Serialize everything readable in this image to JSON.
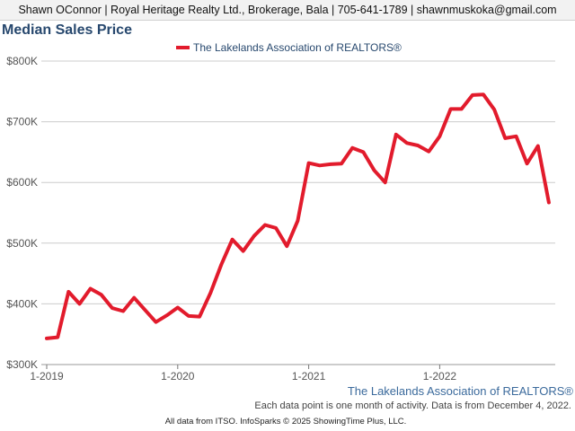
{
  "header": {
    "text": "Shawn OConnor | Royal Heritage Realty Ltd., Brokerage, Bala | 705-641-1789 | shawnmuskoka@gmail.com"
  },
  "footer": {
    "source": "The Lakelands Association of REALTORS®",
    "note": "Each data point is one month of activity. Data is from December 4, 2022.",
    "copyright": "All data from ITSO. InfoSparks © 2025 ShowingTime Plus, LLC."
  },
  "colors": {
    "series": "#e21b2c",
    "title": "#27486e",
    "grid": "#cccccc"
  },
  "chart_data": {
    "type": "line",
    "title": "Median Sales Price",
    "legend_position": "top-center",
    "grid": true,
    "ylim": [
      300000,
      800000
    ],
    "y_ticks": [
      300000,
      400000,
      500000,
      600000,
      700000,
      800000
    ],
    "y_tick_labels": [
      "$300K",
      "$400K",
      "$500K",
      "$600K",
      "$700K",
      "$800K"
    ],
    "x_ticks": [
      "2019-01",
      "2020-01",
      "2021-01",
      "2022-01"
    ],
    "x_tick_labels": [
      "1-2019",
      "1-2020",
      "1-2021",
      "1-2022"
    ],
    "series": [
      {
        "name": "The Lakelands Association of REALTORS®",
        "x": [
          "2019-01",
          "2019-02",
          "2019-03",
          "2019-04",
          "2019-05",
          "2019-06",
          "2019-07",
          "2019-08",
          "2019-09",
          "2019-10",
          "2019-11",
          "2019-12",
          "2020-01",
          "2020-02",
          "2020-03",
          "2020-04",
          "2020-05",
          "2020-06",
          "2020-07",
          "2020-08",
          "2020-09",
          "2020-10",
          "2020-11",
          "2020-12",
          "2021-01",
          "2021-02",
          "2021-03",
          "2021-04",
          "2021-05",
          "2021-06",
          "2021-07",
          "2021-08",
          "2021-09",
          "2021-10",
          "2021-11",
          "2021-12",
          "2022-01",
          "2022-02",
          "2022-03",
          "2022-04",
          "2022-05",
          "2022-06",
          "2022-07",
          "2022-08",
          "2022-09",
          "2022-10",
          "2022-11"
        ],
        "values": [
          343000,
          345000,
          420000,
          400000,
          425000,
          415000,
          393000,
          388000,
          410000,
          390000,
          370000,
          381000,
          394000,
          380000,
          379000,
          418000,
          465000,
          506000,
          487000,
          512000,
          530000,
          525000,
          495000,
          537000,
          632000,
          628000,
          630000,
          631000,
          657000,
          650000,
          620000,
          600000,
          679000,
          665000,
          661000,
          651000,
          676000,
          721000,
          721000,
          744000,
          745000,
          720000,
          673000,
          676000,
          631000,
          660000,
          567000
        ]
      }
    ]
  }
}
